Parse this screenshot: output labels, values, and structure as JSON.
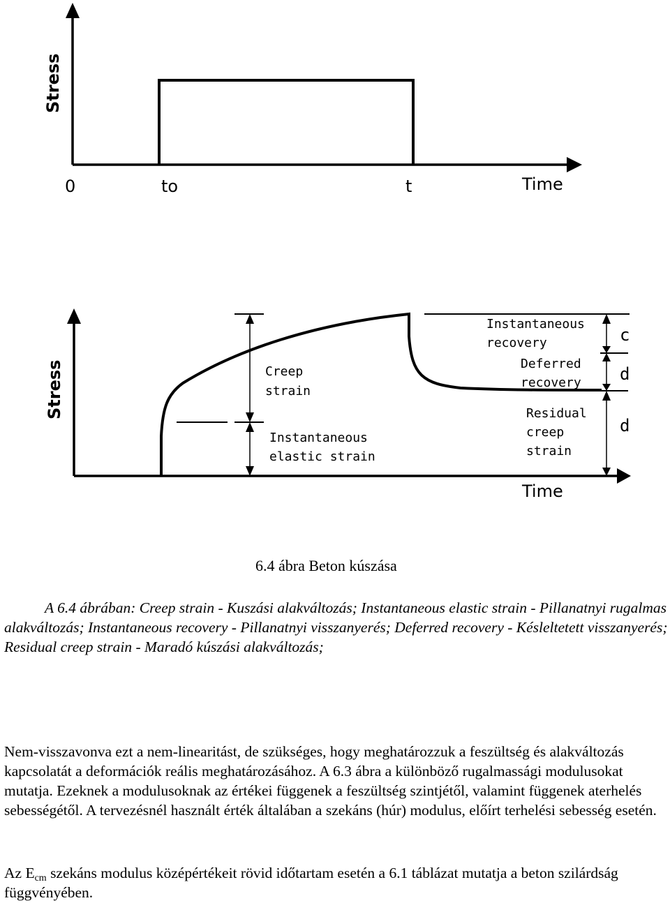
{
  "figure": {
    "top_chart": {
      "y_label": "Stress",
      "x_label": "Time",
      "tick_labels": [
        "0",
        "to",
        "t"
      ]
    },
    "bottom_chart": {
      "y_label": "Stress",
      "x_label": "Time",
      "annotations": {
        "creep_strain": [
          "Creep",
          "strain"
        ],
        "instantaneous_elastic": [
          "Instantaneous",
          "elastic strain"
        ],
        "instantaneous_recovery": [
          "Instantaneous",
          "recovery"
        ],
        "deferred_recovery": [
          "Deferred",
          "recovery"
        ],
        "residual_creep": [
          "Residual",
          "creep",
          "strain"
        ],
        "letters": [
          "c",
          "d",
          "d"
        ]
      }
    }
  },
  "caption": "6.4 ábra Beton kúszása",
  "paragraphs": {
    "p1": "A 6.4 ábrában: Creep strain - Kuszási alakváltozás; Instantaneous elastic strain - Pillanatnyi rugalmas alakváltozás; Instantaneous recovery - Pillanatnyi visszanyerés; Deferred recovery - Késleltetett visszanyerés; Residual creep strain - Maradó kúszási alakváltozás;",
    "p2": "Nem-visszavonva ezt a nem-linearitást, de szükséges, hogy meghatározzuk a feszültség és alakváltozás kapcsolatát a deformációk reális meghatározásához. A 6.3 ábra a különböző rugalmassági modulusokat mutatja. Ezeknek a modulusoknak az értékei függenek a feszültség szintjétől, valamint függenek aterhelés sebességétől. A tervezésnél használt érték általában a szekáns (húr) modulus, előírt terhelési sebesség esetén.",
    "p3_before": "Az E",
    "p3_sub": "cm",
    "p3_after": " szekáns modulus középértékeit rövid időtartam esetén a 6.1 táblázat mutatja a beton szilárdság függvényében."
  }
}
